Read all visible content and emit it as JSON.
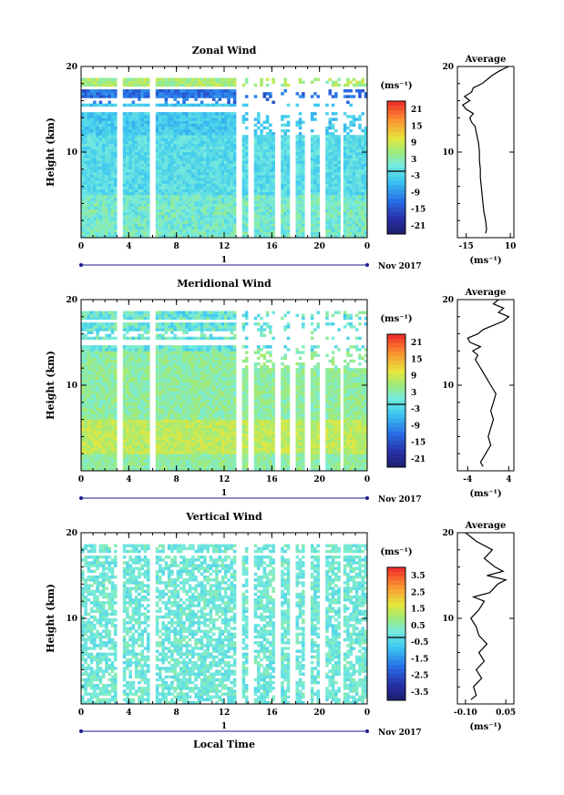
{
  "chart_data": [
    {
      "type": "heatmap",
      "title": "Zonal Wind",
      "ylabel": "Height (km)",
      "xlim": [
        0,
        24
      ],
      "ylim": [
        0,
        20
      ],
      "x_ticks": [
        "0",
        "4",
        "8",
        "12",
        "16",
        "20",
        "0"
      ],
      "y_ticks": [
        "10",
        "20"
      ],
      "date_marker": "1",
      "date_label": "Nov 2017",
      "colorbar": {
        "unit": "(ms⁻¹)",
        "ticks": [
          "21",
          "15",
          "9",
          "3",
          "-3",
          "-9",
          "-15",
          "-21"
        ],
        "range": [
          -24,
          24
        ]
      },
      "profile": {
        "title": "Average",
        "xlabel": "(ms⁻¹)",
        "x_ticks": [
          "-15",
          "10"
        ],
        "y_ticks": [
          "10",
          "20"
        ],
        "xlim": [
          -20,
          12
        ],
        "points": [
          [
            -4,
            0.5
          ],
          [
            -3.5,
            1
          ],
          [
            -4,
            2
          ],
          [
            -5,
            3
          ],
          [
            -5.5,
            4
          ],
          [
            -6,
            5
          ],
          [
            -6.5,
            6
          ],
          [
            -7,
            7
          ],
          [
            -7,
            8
          ],
          [
            -7.5,
            9
          ],
          [
            -7.5,
            10
          ],
          [
            -8,
            11
          ],
          [
            -9,
            12
          ],
          [
            -10,
            13
          ],
          [
            -12,
            13.5
          ],
          [
            -13,
            14
          ],
          [
            -11,
            14.5
          ],
          [
            -15,
            15
          ],
          [
            -17,
            15.5
          ],
          [
            -13,
            16
          ],
          [
            -16,
            16.5
          ],
          [
            -12,
            17
          ],
          [
            -11,
            17.5
          ],
          [
            -6,
            18
          ],
          [
            -3,
            18.5
          ],
          [
            0,
            19
          ],
          [
            4,
            19.5
          ],
          [
            9,
            20
          ]
        ]
      }
    },
    {
      "type": "heatmap",
      "title": "Meridional Wind",
      "ylabel": "Height (km)",
      "xlim": [
        0,
        24
      ],
      "ylim": [
        0,
        20
      ],
      "x_ticks": [
        "0",
        "4",
        "8",
        "12",
        "16",
        "20",
        "0"
      ],
      "y_ticks": [
        "10",
        "20"
      ],
      "date_marker": "1",
      "date_label": "Nov 2017",
      "colorbar": {
        "unit": "(ms⁻¹)",
        "ticks": [
          "21",
          "15",
          "9",
          "3",
          "-3",
          "-9",
          "-15",
          "-21"
        ],
        "range": [
          -24,
          24
        ]
      },
      "profile": {
        "title": "Average",
        "xlabel": "(ms⁻¹)",
        "x_ticks": [
          "-4",
          "4"
        ],
        "y_ticks": [
          "10",
          "20"
        ],
        "xlim": [
          -6,
          5
        ],
        "points": [
          [
            -1,
            0.5
          ],
          [
            -1.5,
            1
          ],
          [
            -0.5,
            2
          ],
          [
            0.5,
            3
          ],
          [
            0,
            4
          ],
          [
            0.5,
            5
          ],
          [
            1,
            6
          ],
          [
            0.5,
            7
          ],
          [
            1,
            8
          ],
          [
            1.5,
            9
          ],
          [
            0.5,
            10
          ],
          [
            -0.5,
            11
          ],
          [
            -1.5,
            12
          ],
          [
            -2.5,
            13
          ],
          [
            -2,
            13.5
          ],
          [
            -3,
            14
          ],
          [
            -1.5,
            14.5
          ],
          [
            -3.5,
            15
          ],
          [
            -4,
            15.5
          ],
          [
            -2,
            16
          ],
          [
            -1,
            16.5
          ],
          [
            1,
            17
          ],
          [
            3,
            17.5
          ],
          [
            4,
            18
          ],
          [
            2,
            18.5
          ],
          [
            3,
            19
          ],
          [
            1,
            19.5
          ],
          [
            2,
            20
          ]
        ]
      }
    },
    {
      "type": "heatmap",
      "title": "Vertical Wind",
      "ylabel": "Height (km)",
      "xlabel": "Local Time",
      "xlim": [
        0,
        24
      ],
      "ylim": [
        0,
        20
      ],
      "x_ticks": [
        "0",
        "4",
        "8",
        "12",
        "16",
        "20",
        "0"
      ],
      "y_ticks": [
        "10",
        "20"
      ],
      "date_marker": "1",
      "date_label": "Nov 2017",
      "colorbar": {
        "unit": "(ms⁻¹)",
        "ticks": [
          "3.5",
          "2.5",
          "1.5",
          "0.5",
          "-0.5",
          "-1.5",
          "-2.5",
          "-3.5"
        ],
        "range": [
          -4,
          4
        ]
      },
      "profile": {
        "title": "Average",
        "xlabel": "(ms⁻¹)",
        "x_ticks": [
          "-0.10",
          "0.05"
        ],
        "y_ticks": [
          "10",
          "20"
        ],
        "xlim": [
          -0.13,
          0.08
        ],
        "points": [
          [
            -0.08,
            0.5
          ],
          [
            -0.06,
            1
          ],
          [
            -0.07,
            2
          ],
          [
            -0.04,
            3
          ],
          [
            -0.06,
            4
          ],
          [
            -0.03,
            5
          ],
          [
            -0.05,
            6
          ],
          [
            -0.02,
            7
          ],
          [
            -0.05,
            8
          ],
          [
            -0.06,
            9
          ],
          [
            -0.08,
            10
          ],
          [
            -0.05,
            11
          ],
          [
            -0.03,
            12
          ],
          [
            -0.07,
            12.5
          ],
          [
            -0.01,
            13
          ],
          [
            0.02,
            14
          ],
          [
            0.05,
            14.5
          ],
          [
            -0.02,
            15
          ],
          [
            0.04,
            15.5
          ],
          [
            0.01,
            16
          ],
          [
            -0.03,
            17
          ],
          [
            0.0,
            18
          ],
          [
            -0.06,
            19
          ],
          [
            -0.1,
            20
          ]
        ]
      }
    }
  ]
}
